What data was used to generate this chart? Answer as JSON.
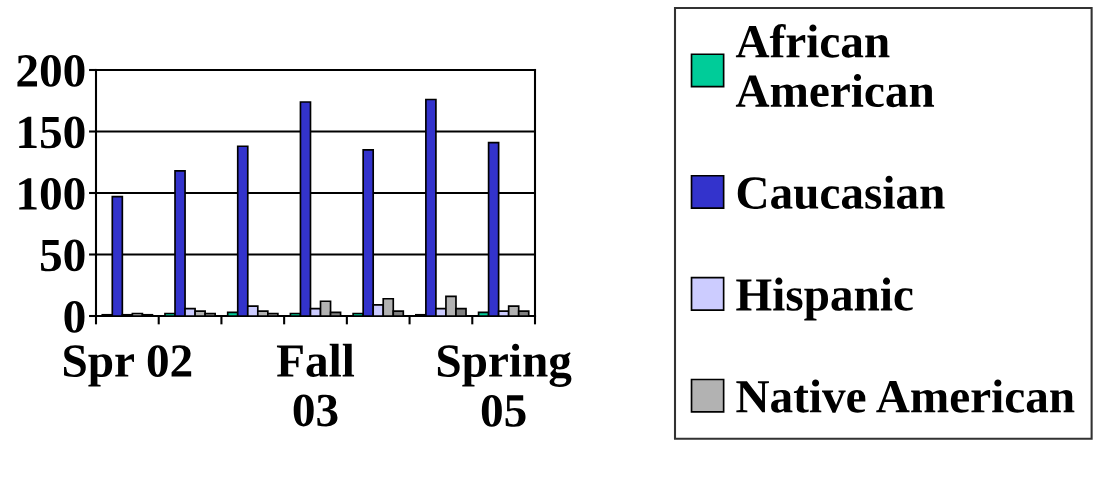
{
  "chart_data": {
    "type": "bar",
    "categories": [
      "Spr 02",
      null,
      null,
      "Fall 03",
      null,
      null,
      "Spring 05"
    ],
    "series": [
      {
        "name": "African American",
        "color": "#00cc99",
        "values": [
          1,
          2,
          3,
          2,
          2,
          1,
          3
        ]
      },
      {
        "name": "Caucasian",
        "color": "#3333cc",
        "values": [
          97,
          118,
          138,
          174,
          135,
          176,
          141
        ]
      },
      {
        "name": "Hispanic",
        "color": "#ccccff",
        "values": [
          1,
          6,
          8,
          6,
          9,
          6,
          4
        ]
      },
      {
        "name": "Native American",
        "color": "#b2b2b2",
        "values": [
          2,
          4,
          4,
          12,
          14,
          16,
          8
        ]
      },
      {
        "color": "#808080",
        "values": [
          1,
          2,
          2,
          3,
          4,
          6,
          4
        ]
      }
    ],
    "ylim": [
      0,
      200
    ],
    "yticks": [
      0,
      50,
      100,
      150,
      200
    ],
    "grid": "y",
    "legend": "right"
  }
}
